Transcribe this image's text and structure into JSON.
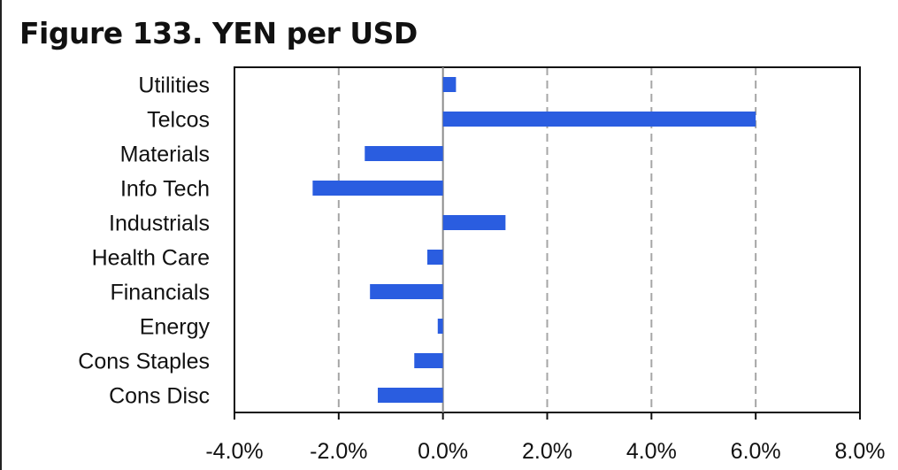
{
  "title": "Figure 133. YEN per USD",
  "colors": {
    "bar": "#2a5de0",
    "grid": "#a6a6a6",
    "axis": "#111111"
  },
  "chart_data": {
    "type": "bar",
    "orientation": "horizontal",
    "title": "Figure 133. YEN per USD",
    "categories": [
      "Utilities",
      "Telcos",
      "Materials",
      "Info Tech",
      "Industrials",
      "Health Care",
      "Financials",
      "Energy",
      "Cons Staples",
      "Cons Disc"
    ],
    "values": [
      0.25,
      6.0,
      -1.5,
      -2.5,
      1.2,
      -0.3,
      -1.4,
      -0.1,
      -0.55,
      -1.25
    ],
    "xlim": [
      -4.0,
      8.0
    ],
    "xticks": [
      -4.0,
      -2.0,
      0.0,
      2.0,
      4.0,
      6.0,
      8.0
    ],
    "xtick_labels": [
      "-4.0%",
      "-2.0%",
      "0.0%",
      "2.0%",
      "4.0%",
      "6.0%",
      "8.0%"
    ],
    "grid": "vertical dashed",
    "legend": "none"
  }
}
